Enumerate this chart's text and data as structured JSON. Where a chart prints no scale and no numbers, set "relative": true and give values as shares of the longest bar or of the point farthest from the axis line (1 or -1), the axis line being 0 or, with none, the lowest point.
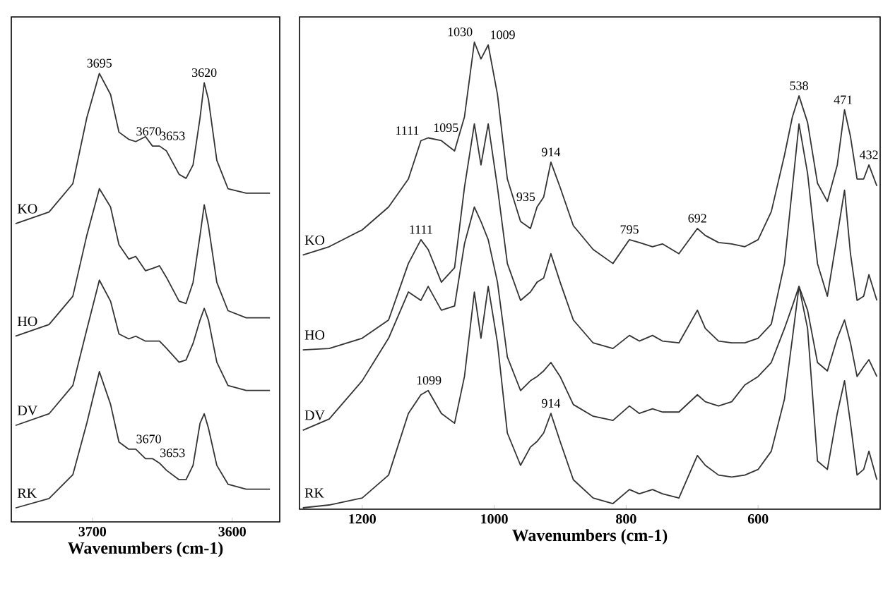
{
  "chart_data": [
    {
      "type": "line",
      "relative": true,
      "xlabel": "Wavenumbers (cm-1)",
      "xlim": [
        3758,
        3566
      ],
      "xticks": [
        3700,
        3600
      ],
      "x": [
        3755,
        3731,
        3714,
        3704,
        3695,
        3687,
        3681,
        3674,
        3669,
        3662,
        3657,
        3652,
        3647,
        3638,
        3633,
        3628,
        3623,
        3620,
        3617,
        3611,
        3603,
        3590,
        3573
      ],
      "series": [
        {
          "name": "KO",
          "color": "#333333",
          "values": [
            0.665,
            0.691,
            0.754,
            0.901,
            1.0,
            0.953,
            0.869,
            0.853,
            0.848,
            0.859,
            0.838,
            0.838,
            0.827,
            0.775,
            0.766,
            0.796,
            0.901,
            0.979,
            0.942,
            0.806,
            0.743,
            0.733,
            0.733
          ]
        },
        {
          "name": "HO",
          "color": "#333333",
          "values": [
            0.414,
            0.44,
            0.503,
            0.639,
            0.743,
            0.702,
            0.618,
            0.586,
            0.592,
            0.56,
            0.565,
            0.571,
            0.545,
            0.492,
            0.487,
            0.534,
            0.639,
            0.707,
            0.66,
            0.534,
            0.471,
            0.455,
            0.455
          ]
        },
        {
          "name": "DV",
          "color": "#333333",
          "values": [
            0.215,
            0.241,
            0.304,
            0.429,
            0.539,
            0.492,
            0.419,
            0.408,
            0.414,
            0.403,
            0.403,
            0.403,
            0.387,
            0.356,
            0.361,
            0.398,
            0.45,
            0.476,
            0.45,
            0.356,
            0.304,
            0.293,
            0.293
          ]
        },
        {
          "name": "RK",
          "color": "#333333",
          "values": [
            0.031,
            0.052,
            0.105,
            0.22,
            0.335,
            0.262,
            0.178,
            0.162,
            0.162,
            0.141,
            0.141,
            0.131,
            0.115,
            0.094,
            0.094,
            0.126,
            0.22,
            0.241,
            0.209,
            0.126,
            0.084,
            0.073,
            0.073
          ]
        }
      ],
      "annotations": [
        {
          "text": "3695",
          "x": 3695,
          "y": 1.0
        },
        {
          "text": "3670",
          "x": 3670,
          "y": 0.848
        },
        {
          "text": "3653",
          "x": 3653,
          "y": 0.838
        },
        {
          "text": "3620",
          "x": 3620,
          "y": 0.979
        },
        {
          "text": "3670",
          "x": 3670,
          "y": 0.162
        },
        {
          "text": "3653",
          "x": 3653,
          "y": 0.131
        }
      ]
    },
    {
      "type": "line",
      "relative": true,
      "xlabel": "Wavenumbers (cm-1)",
      "xlim": [
        1295,
        415
      ],
      "xticks": [
        1200,
        1000,
        800,
        600
      ],
      "x": [
        1290,
        1250,
        1200,
        1160,
        1130,
        1111,
        1100,
        1080,
        1060,
        1045,
        1030,
        1020,
        1009,
        995,
        980,
        960,
        945,
        935,
        925,
        914,
        900,
        880,
        850,
        820,
        795,
        780,
        760,
        745,
        720,
        692,
        680,
        660,
        640,
        620,
        600,
        580,
        560,
        548,
        538,
        525,
        510,
        495,
        480,
        469,
        460,
        450,
        440,
        432,
        420
      ],
      "series": [
        {
          "name": "KO",
          "color": "#333333",
          "values": [
            0.544,
            0.562,
            0.598,
            0.647,
            0.707,
            0.789,
            0.795,
            0.789,
            0.767,
            0.84,
            1.0,
            0.964,
            0.994,
            0.888,
            0.707,
            0.616,
            0.601,
            0.647,
            0.668,
            0.743,
            0.689,
            0.607,
            0.556,
            0.526,
            0.577,
            0.571,
            0.562,
            0.568,
            0.547,
            0.601,
            0.586,
            0.571,
            0.568,
            0.562,
            0.577,
            0.637,
            0.758,
            0.84,
            0.885,
            0.828,
            0.698,
            0.659,
            0.737,
            0.855,
            0.798,
            0.707,
            0.707,
            0.737,
            0.692
          ]
        },
        {
          "name": "HO",
          "color": "#333333",
          "values": [
            0.341,
            0.344,
            0.366,
            0.405,
            0.526,
            0.577,
            0.556,
            0.486,
            0.517,
            0.689,
            0.825,
            0.737,
            0.825,
            0.689,
            0.526,
            0.447,
            0.465,
            0.486,
            0.495,
            0.547,
            0.486,
            0.405,
            0.356,
            0.344,
            0.372,
            0.36,
            0.372,
            0.36,
            0.356,
            0.426,
            0.387,
            0.36,
            0.356,
            0.356,
            0.366,
            0.396,
            0.526,
            0.689,
            0.825,
            0.719,
            0.526,
            0.456,
            0.586,
            0.683,
            0.547,
            0.447,
            0.456,
            0.502,
            0.447
          ]
        },
        {
          "name": "DV",
          "color": "#333333",
          "values": [
            0.169,
            0.193,
            0.275,
            0.366,
            0.465,
            0.447,
            0.477,
            0.426,
            0.435,
            0.568,
            0.647,
            0.616,
            0.577,
            0.486,
            0.326,
            0.254,
            0.275,
            0.284,
            0.296,
            0.314,
            0.284,
            0.224,
            0.199,
            0.19,
            0.221,
            0.205,
            0.215,
            0.208,
            0.208,
            0.245,
            0.23,
            0.221,
            0.23,
            0.266,
            0.284,
            0.314,
            0.387,
            0.435,
            0.477,
            0.426,
            0.314,
            0.296,
            0.366,
            0.405,
            0.356,
            0.284,
            0.305,
            0.32,
            0.284
          ]
        },
        {
          "name": "RK",
          "color": "#333333",
          "values": [
            0.003,
            0.009,
            0.024,
            0.073,
            0.205,
            0.245,
            0.254,
            0.205,
            0.184,
            0.284,
            0.465,
            0.366,
            0.477,
            0.356,
            0.163,
            0.094,
            0.133,
            0.145,
            0.163,
            0.205,
            0.145,
            0.063,
            0.024,
            0.012,
            0.042,
            0.033,
            0.042,
            0.033,
            0.024,
            0.115,
            0.094,
            0.073,
            0.069,
            0.073,
            0.085,
            0.124,
            0.236,
            0.366,
            0.477,
            0.387,
            0.103,
            0.085,
            0.205,
            0.275,
            0.184,
            0.073,
            0.085,
            0.124,
            0.063
          ]
        }
      ],
      "annotations": [
        {
          "text": "1111",
          "x": 1111,
          "y": 0.789
        },
        {
          "text": "1095",
          "x": 1095,
          "y": 0.795
        },
        {
          "text": "1030",
          "x": 1030,
          "y": 1.0
        },
        {
          "text": "1009",
          "x": 1009,
          "y": 0.994
        },
        {
          "text": "935",
          "x": 935,
          "y": 0.647
        },
        {
          "text": "914",
          "x": 914,
          "y": 0.743
        },
        {
          "text": "795",
          "x": 795,
          "y": 0.577
        },
        {
          "text": "692",
          "x": 692,
          "y": 0.601
        },
        {
          "text": "538",
          "x": 538,
          "y": 0.885
        },
        {
          "text": "471",
          "x": 471,
          "y": 0.855
        },
        {
          "text": "432",
          "x": 432,
          "y": 0.737
        },
        {
          "text": "1111",
          "x": 1111,
          "y": 0.577
        },
        {
          "text": "1099",
          "x": 1099,
          "y": 0.254
        },
        {
          "text": "914",
          "x": 914,
          "y": 0.205
        }
      ]
    }
  ]
}
